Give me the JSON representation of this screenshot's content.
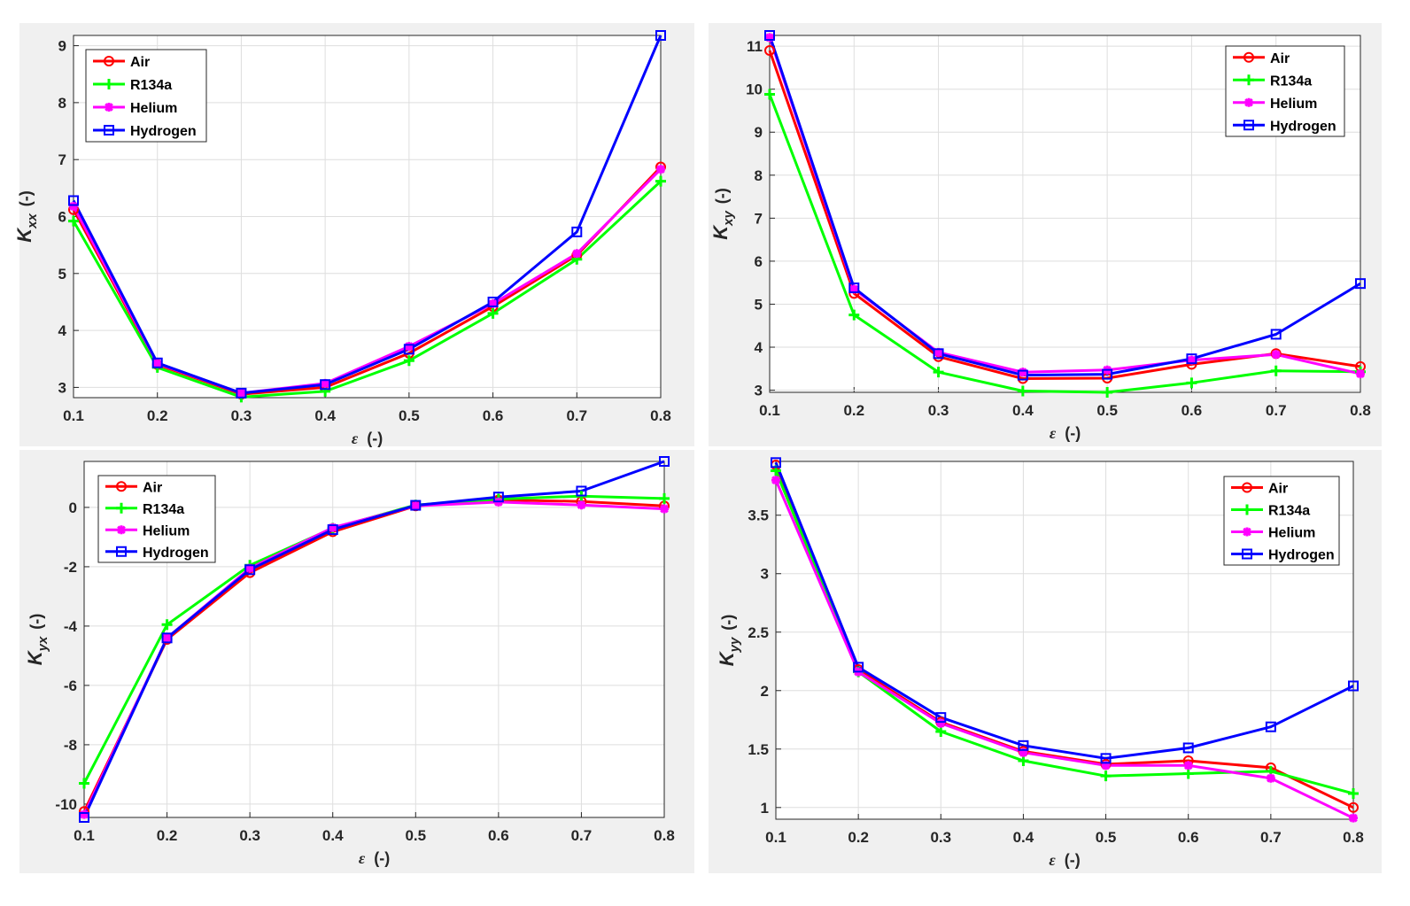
{
  "chart_data": [
    {
      "type": "line",
      "id": "kxx",
      "ylabel_main": "K",
      "ylabel_sub": "xx",
      "ylabel_unit": "(-)",
      "xlabel_main": "ε",
      "xlabel_unit": "(-)",
      "x": [
        0.1,
        0.2,
        0.3,
        0.4,
        0.5,
        0.6,
        0.7,
        0.8
      ],
      "xlim": [
        0.1,
        0.8
      ],
      "ylim": [
        2.82,
        9.18
      ],
      "xticks": [
        "0.1",
        "0.2",
        "0.3",
        "0.4",
        "0.5",
        "0.6",
        "0.7",
        "0.8"
      ],
      "yticks": [
        3,
        4,
        5,
        6,
        7,
        8,
        9
      ],
      "legend_position": "top-left",
      "grid": true,
      "series": [
        {
          "name": "Air",
          "color": "#ff0000",
          "marker": "circle",
          "values": [
            6.12,
            3.4,
            2.88,
            3.0,
            3.6,
            4.42,
            5.32,
            6.87
          ]
        },
        {
          "name": "R134a",
          "color": "#00ff00",
          "marker": "plus",
          "values": [
            5.92,
            3.35,
            2.83,
            2.93,
            3.47,
            4.3,
            5.25,
            6.62
          ]
        },
        {
          "name": "Helium",
          "color": "#ff00ff",
          "marker": "asterisk",
          "values": [
            6.18,
            3.42,
            2.9,
            3.07,
            3.72,
            4.47,
            5.35,
            6.83
          ]
        },
        {
          "name": "Hydrogen",
          "color": "#0000ff",
          "marker": "square",
          "values": [
            6.28,
            3.43,
            2.9,
            3.05,
            3.67,
            4.5,
            5.73,
            9.18
          ]
        }
      ]
    },
    {
      "type": "line",
      "id": "kxy",
      "ylabel_main": "K",
      "ylabel_sub": "xy",
      "ylabel_unit": "(-)",
      "xlabel_main": "ε",
      "xlabel_unit": "(-)",
      "x": [
        0.1,
        0.2,
        0.3,
        0.4,
        0.5,
        0.6,
        0.7,
        0.8
      ],
      "xlim": [
        0.1,
        0.8
      ],
      "ylim": [
        2.95,
        11.25
      ],
      "xticks": [
        "0.1",
        "0.2",
        "0.3",
        "0.4",
        "0.5",
        "0.6",
        "0.7",
        "0.8"
      ],
      "yticks": [
        3,
        4,
        5,
        6,
        7,
        8,
        9,
        10,
        11
      ],
      "legend_position": "top-right",
      "grid": true,
      "series": [
        {
          "name": "Air",
          "color": "#ff0000",
          "marker": "circle",
          "values": [
            10.9,
            5.25,
            3.78,
            3.27,
            3.28,
            3.6,
            3.85,
            3.55
          ]
        },
        {
          "name": "R134a",
          "color": "#00ff00",
          "marker": "plus",
          "values": [
            9.88,
            4.75,
            3.42,
            2.98,
            2.95,
            3.17,
            3.45,
            3.43
          ]
        },
        {
          "name": "Helium",
          "color": "#ff00ff",
          "marker": "asterisk",
          "values": [
            11.2,
            5.35,
            3.88,
            3.42,
            3.47,
            3.7,
            3.83,
            3.38
          ]
        },
        {
          "name": "Hydrogen",
          "color": "#0000ff",
          "marker": "square",
          "values": [
            11.25,
            5.38,
            3.85,
            3.35,
            3.37,
            3.73,
            4.3,
            5.48
          ]
        }
      ]
    },
    {
      "type": "line",
      "id": "kyx",
      "ylabel_main": "K",
      "ylabel_sub": "yx",
      "ylabel_unit": "(-)",
      "xlabel_main": "ε",
      "xlabel_unit": "(-)",
      "x": [
        0.1,
        0.2,
        0.3,
        0.4,
        0.5,
        0.6,
        0.7,
        0.8
      ],
      "xlim": [
        0.1,
        0.8
      ],
      "ylim": [
        -10.45,
        1.55
      ],
      "xticks": [
        "0.1",
        "0.2",
        "0.3",
        "0.4",
        "0.5",
        "0.6",
        "0.7",
        "0.8"
      ],
      "yticks": [
        -10,
        -8,
        -6,
        -4,
        -2,
        0
      ],
      "legend_position": "top-left",
      "grid": true,
      "series": [
        {
          "name": "Air",
          "color": "#ff0000",
          "marker": "circle",
          "values": [
            -10.25,
            -4.45,
            -2.2,
            -0.82,
            0.05,
            0.25,
            0.2,
            0.05
          ]
        },
        {
          "name": "R134a",
          "color": "#00ff00",
          "marker": "plus",
          "values": [
            -9.3,
            -3.95,
            -1.95,
            -0.7,
            0.08,
            0.28,
            0.38,
            0.3
          ]
        },
        {
          "name": "Helium",
          "color": "#ff00ff",
          "marker": "asterisk",
          "values": [
            -10.35,
            -4.4,
            -2.05,
            -0.68,
            0.05,
            0.18,
            0.08,
            -0.05
          ]
        },
        {
          "name": "Hydrogen",
          "color": "#0000ff",
          "marker": "square",
          "values": [
            -10.45,
            -4.4,
            -2.1,
            -0.75,
            0.07,
            0.35,
            0.55,
            1.55
          ]
        }
      ]
    },
    {
      "type": "line",
      "id": "kyy",
      "ylabel_main": "K",
      "ylabel_sub": "yy",
      "ylabel_unit": "(-)",
      "xlabel_main": "ε",
      "xlabel_unit": "(-)",
      "x": [
        0.1,
        0.2,
        0.3,
        0.4,
        0.5,
        0.6,
        0.7,
        0.8
      ],
      "xlim": [
        0.1,
        0.8
      ],
      "ylim": [
        0.9,
        3.96
      ],
      "xticks": [
        "0.1",
        "0.2",
        "0.3",
        "0.4",
        "0.5",
        "0.6",
        "0.7",
        "0.8"
      ],
      "yticks": [
        1,
        1.5,
        2,
        2.5,
        3,
        3.5
      ],
      "legend_position": "top-right",
      "grid": true,
      "series": [
        {
          "name": "Air",
          "color": "#ff0000",
          "marker": "circle",
          "values": [
            3.93,
            2.18,
            1.73,
            1.48,
            1.37,
            1.4,
            1.34,
            1.0
          ]
        },
        {
          "name": "R134a",
          "color": "#00ff00",
          "marker": "plus",
          "values": [
            3.88,
            2.16,
            1.65,
            1.4,
            1.27,
            1.29,
            1.31,
            1.12
          ]
        },
        {
          "name": "Helium",
          "color": "#ff00ff",
          "marker": "asterisk",
          "values": [
            3.8,
            2.16,
            1.72,
            1.47,
            1.36,
            1.36,
            1.25,
            0.91
          ]
        },
        {
          "name": "Hydrogen",
          "color": "#0000ff",
          "marker": "square",
          "values": [
            3.95,
            2.2,
            1.77,
            1.53,
            1.42,
            1.51,
            1.69,
            2.04
          ]
        }
      ]
    }
  ]
}
